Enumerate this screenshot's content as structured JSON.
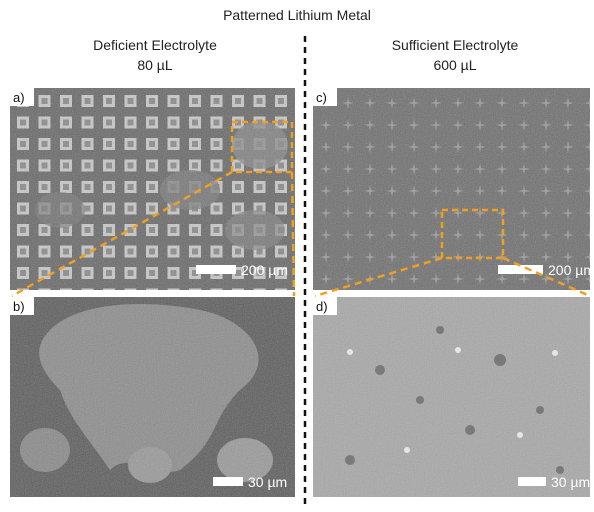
{
  "title": "Patterned Lithium Metal",
  "columns": [
    {
      "heading": "Deficient Electrolyte",
      "volume": "80 µL"
    },
    {
      "heading": "Sufficient Electrolyte",
      "volume": "600 µL"
    }
  ],
  "panels": [
    {
      "label": "a)",
      "scale_bar": "200 µm"
    },
    {
      "label": "b)",
      "scale_bar": "30 µm"
    },
    {
      "label": "c)",
      "scale_bar": "200 µm"
    },
    {
      "label": "d)",
      "scale_bar": "30 µm"
    }
  ]
}
